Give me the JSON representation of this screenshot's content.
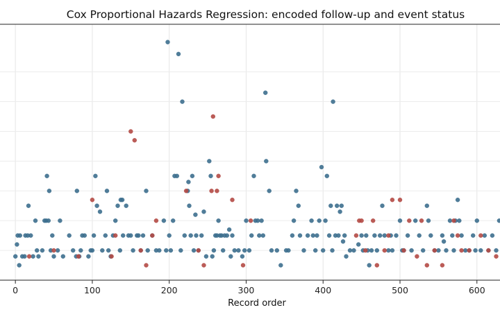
{
  "chart_data": {
    "type": "scatter",
    "title": "Cox Proportional Hazards Regression: encoded follow-up and event status",
    "xlabel": "Record order",
    "ylabel": "",
    "xlim": [
      -20,
      630
    ],
    "ylim": [
      0,
      8.6
    ],
    "grid": true,
    "legend": "none",
    "x_ticks": [
      0,
      100,
      200,
      300,
      400,
      500,
      600
    ],
    "colors": {
      "censored": "#3d6f8e",
      "event": "#b44a45"
    },
    "series": [
      {
        "status": "censored",
        "points": [
          [
            0,
            0.8
          ],
          [
            2,
            1.2
          ],
          [
            3,
            1.5
          ],
          [
            5,
            0.5
          ],
          [
            6,
            1.5
          ],
          [
            9,
            0.8
          ],
          [
            12,
            0.8
          ],
          [
            13,
            1.5
          ],
          [
            16,
            1.5
          ],
          [
            17,
            2.5
          ],
          [
            20,
            1.5
          ],
          [
            23,
            0.8
          ],
          [
            26,
            2.0
          ],
          [
            28,
            1.0
          ],
          [
            30,
            0.8
          ],
          [
            35,
            1.0
          ],
          [
            38,
            2.0
          ],
          [
            40,
            2.0
          ],
          [
            41,
            3.5
          ],
          [
            43,
            2.0
          ],
          [
            44,
            3.0
          ],
          [
            46,
            1.0
          ],
          [
            48,
            1.5
          ],
          [
            50,
            0.8
          ],
          [
            55,
            1.0
          ],
          [
            58,
            2.0
          ],
          [
            62,
            0.8
          ],
          [
            70,
            1.5
          ],
          [
            75,
            1.0
          ],
          [
            79,
            0.8
          ],
          [
            80,
            3.0
          ],
          [
            83,
            0.8
          ],
          [
            85,
            1.0
          ],
          [
            87,
            1.5
          ],
          [
            90,
            1.5
          ],
          [
            95,
            0.8
          ],
          [
            98,
            1.0
          ],
          [
            100,
            1.0
          ],
          [
            102,
            1.5
          ],
          [
            104,
            3.5
          ],
          [
            106,
            2.5
          ],
          [
            110,
            2.3
          ],
          [
            113,
            1.0
          ],
          [
            117,
            1.5
          ],
          [
            119,
            3.0
          ],
          [
            121,
            1.0
          ],
          [
            124,
            0.8
          ],
          [
            127,
            1.5
          ],
          [
            130,
            2.0
          ],
          [
            133,
            2.5
          ],
          [
            136,
            1.0
          ],
          [
            137,
            2.7
          ],
          [
            139,
            2.7
          ],
          [
            140,
            1.5
          ],
          [
            144,
            2.5
          ],
          [
            147,
            1.5
          ],
          [
            150,
            1.5
          ],
          [
            153,
            1.0
          ],
          [
            158,
            1.5
          ],
          [
            160,
            1.5
          ],
          [
            163,
            1.0
          ],
          [
            166,
            1.5
          ],
          [
            170,
            3.0
          ],
          [
            172,
            1.0
          ],
          [
            178,
            1.5
          ],
          [
            183,
            1.0
          ],
          [
            187,
            1.0
          ],
          [
            193,
            2.0
          ],
          [
            196,
            1.0
          ],
          [
            198,
            8.0
          ],
          [
            200,
            1.5
          ],
          [
            202,
            1.0
          ],
          [
            205,
            2.0
          ],
          [
            207,
            3.5
          ],
          [
            210,
            3.5
          ],
          [
            212,
            7.6
          ],
          [
            215,
            1.0
          ],
          [
            217,
            6.0
          ],
          [
            220,
            1.5
          ],
          [
            224,
            3.0
          ],
          [
            225,
            3.3
          ],
          [
            226,
            2.5
          ],
          [
            228,
            1.5
          ],
          [
            230,
            3.5
          ],
          [
            232,
            1.0
          ],
          [
            234,
            2.2
          ],
          [
            235,
            1.5
          ],
          [
            238,
            1.0
          ],
          [
            242,
            1.5
          ],
          [
            245,
            2.3
          ],
          [
            248,
            0.8
          ],
          [
            252,
            4.0
          ],
          [
            254,
            3.5
          ],
          [
            256,
            0.8
          ],
          [
            258,
            1.0
          ],
          [
            260,
            1.5
          ],
          [
            262,
            1.5
          ],
          [
            264,
            2.0
          ],
          [
            266,
            1.5
          ],
          [
            268,
            1.5
          ],
          [
            270,
            1.0
          ],
          [
            272,
            1.5
          ],
          [
            275,
            1.5
          ],
          [
            278,
            1.7
          ],
          [
            280,
            0.8
          ],
          [
            282,
            1.5
          ],
          [
            285,
            1.0
          ],
          [
            290,
            1.0
          ],
          [
            295,
            0.8
          ],
          [
            298,
            1.0
          ],
          [
            300,
            2.0
          ],
          [
            304,
            1.0
          ],
          [
            307,
            1.5
          ],
          [
            310,
            3.5
          ],
          [
            312,
            2.0
          ],
          [
            315,
            2.0
          ],
          [
            317,
            1.5
          ],
          [
            320,
            2.0
          ],
          [
            322,
            1.5
          ],
          [
            325,
            6.3
          ],
          [
            326,
            4.0
          ],
          [
            330,
            3.0
          ],
          [
            333,
            1.0
          ],
          [
            340,
            1.0
          ],
          [
            345,
            0.5
          ],
          [
            352,
            1.0
          ],
          [
            355,
            1.0
          ],
          [
            360,
            1.5
          ],
          [
            362,
            2.0
          ],
          [
            365,
            3.0
          ],
          [
            368,
            2.5
          ],
          [
            370,
            1.5
          ],
          [
            375,
            1.0
          ],
          [
            380,
            1.5
          ],
          [
            385,
            2.0
          ],
          [
            387,
            1.5
          ],
          [
            390,
            1.0
          ],
          [
            392,
            1.5
          ],
          [
            395,
            2.0
          ],
          [
            398,
            3.8
          ],
          [
            400,
            1.0
          ],
          [
            403,
            2.0
          ],
          [
            405,
            3.5
          ],
          [
            408,
            1.5
          ],
          [
            410,
            2.5
          ],
          [
            412,
            1.0
          ],
          [
            413,
            6.0
          ],
          [
            416,
            1.5
          ],
          [
            418,
            2.5
          ],
          [
            420,
            1.5
          ],
          [
            422,
            2.3
          ],
          [
            424,
            2.5
          ],
          [
            426,
            1.3
          ],
          [
            428,
            1.5
          ],
          [
            430,
            0.8
          ],
          [
            435,
            1.0
          ],
          [
            440,
            1.0
          ],
          [
            446,
            1.2
          ],
          [
            450,
            1.5
          ],
          [
            452,
            1.0
          ],
          [
            456,
            1.5
          ],
          [
            458,
            1.0
          ],
          [
            460,
            0.5
          ],
          [
            463,
            1.0
          ],
          [
            467,
            1.5
          ],
          [
            470,
            1.0
          ],
          [
            474,
            1.5
          ],
          [
            477,
            2.5
          ],
          [
            480,
            1.5
          ],
          [
            485,
            1.0
          ],
          [
            488,
            1.5
          ],
          [
            490,
            1.0
          ],
          [
            495,
            1.5
          ],
          [
            500,
            2.0
          ],
          [
            503,
            1.0
          ],
          [
            505,
            1.0
          ],
          [
            510,
            1.5
          ],
          [
            515,
            1.0
          ],
          [
            520,
            2.0
          ],
          [
            525,
            1.5
          ],
          [
            530,
            1.0
          ],
          [
            535,
            2.5
          ],
          [
            537,
            2.0
          ],
          [
            540,
            1.5
          ],
          [
            545,
            1.0
          ],
          [
            550,
            1.0
          ],
          [
            555,
            1.5
          ],
          [
            557,
            1.3
          ],
          [
            560,
            1.0
          ],
          [
            565,
            2.0
          ],
          [
            568,
            1.5
          ],
          [
            570,
            1.0
          ],
          [
            572,
            2.0
          ],
          [
            575,
            2.7
          ],
          [
            577,
            2.0
          ],
          [
            580,
            1.5
          ],
          [
            585,
            1.0
          ],
          [
            590,
            1.0
          ],
          [
            595,
            1.5
          ],
          [
            598,
            1.0
          ],
          [
            600,
            2.0
          ],
          [
            605,
            1.0
          ],
          [
            610,
            1.5
          ],
          [
            615,
            1.0
          ],
          [
            620,
            1.5
          ],
          [
            625,
            1.0
          ],
          [
            629,
            2.0
          ]
        ]
      },
      {
        "status": "event",
        "points": [
          [
            18,
            0.8
          ],
          [
            50,
            1.0
          ],
          [
            82,
            0.8
          ],
          [
            100,
            2.7
          ],
          [
            125,
            0.8
          ],
          [
            130,
            1.5
          ],
          [
            150,
            5.0
          ],
          [
            155,
            4.7
          ],
          [
            163,
            1.0
          ],
          [
            170,
            0.5
          ],
          [
            178,
            1.5
          ],
          [
            183,
            2.0
          ],
          [
            222,
            3.0
          ],
          [
            238,
            1.0
          ],
          [
            245,
            0.5
          ],
          [
            255,
            3.0
          ],
          [
            257,
            5.5
          ],
          [
            262,
            3.0
          ],
          [
            264,
            3.5
          ],
          [
            282,
            2.7
          ],
          [
            296,
            0.5
          ],
          [
            306,
            2.0
          ],
          [
            443,
            1.5
          ],
          [
            447,
            2.0
          ],
          [
            450,
            2.0
          ],
          [
            455,
            1.0
          ],
          [
            465,
            2.0
          ],
          [
            470,
            0.5
          ],
          [
            480,
            1.0
          ],
          [
            485,
            1.5
          ],
          [
            490,
            2.7
          ],
          [
            500,
            2.7
          ],
          [
            505,
            1.0
          ],
          [
            512,
            2.0
          ],
          [
            522,
            0.8
          ],
          [
            528,
            2.0
          ],
          [
            535,
            0.5
          ],
          [
            545,
            1.0
          ],
          [
            555,
            0.5
          ],
          [
            570,
            2.0
          ],
          [
            575,
            1.5
          ],
          [
            580,
            1.0
          ],
          [
            590,
            1.0
          ],
          [
            605,
            1.5
          ],
          [
            615,
            1.0
          ],
          [
            625,
            0.8
          ]
        ]
      }
    ]
  }
}
